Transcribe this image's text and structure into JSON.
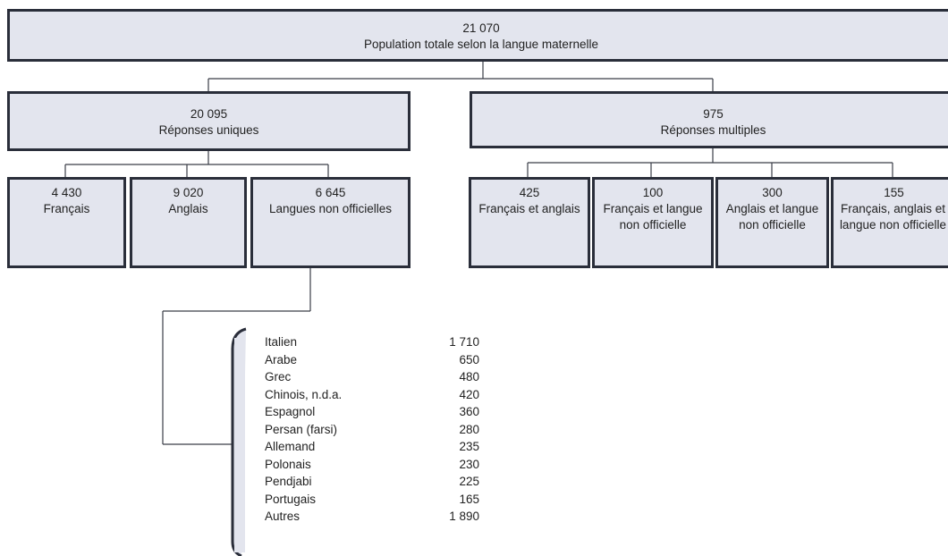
{
  "root": {
    "value": "21 070",
    "label": "Population totale selon la langue maternelle"
  },
  "unique": {
    "value": "20 095",
    "label": "Réponses uniques"
  },
  "multiple": {
    "value": "975",
    "label": "Réponses multiples"
  },
  "unique_children": [
    {
      "value": "4 430",
      "label": "Français"
    },
    {
      "value": "9 020",
      "label": "Anglais"
    },
    {
      "value": "6 645",
      "label": "Langues non officielles"
    }
  ],
  "multiple_children": [
    {
      "value": "425",
      "label": "Français et anglais"
    },
    {
      "value": "100",
      "label": "Français et langue non officielle"
    },
    {
      "value": "300",
      "label": "Anglais et langue non officielle"
    },
    {
      "value": "155",
      "label": "Français, anglais et langue non officielle"
    }
  ],
  "languages": [
    {
      "name": "Italien",
      "value": "1 710"
    },
    {
      "name": "Arabe",
      "value": "650"
    },
    {
      "name": "Grec",
      "value": "480"
    },
    {
      "name": "Chinois, n.d.a.",
      "value": "420"
    },
    {
      "name": "Espagnol",
      "value": "360"
    },
    {
      "name": "Persan (farsi)",
      "value": "280"
    },
    {
      "name": "Allemand",
      "value": "235"
    },
    {
      "name": "Polonais",
      "value": "230"
    },
    {
      "name": "Pendjabi",
      "value": "225"
    },
    {
      "name": "Portugais",
      "value": "165"
    },
    {
      "name": "Autres",
      "value": "1 890"
    }
  ],
  "colors": {
    "box_fill": "#e3e5ee",
    "box_border": "#2a2e3a",
    "connector": "#3a3d47"
  }
}
